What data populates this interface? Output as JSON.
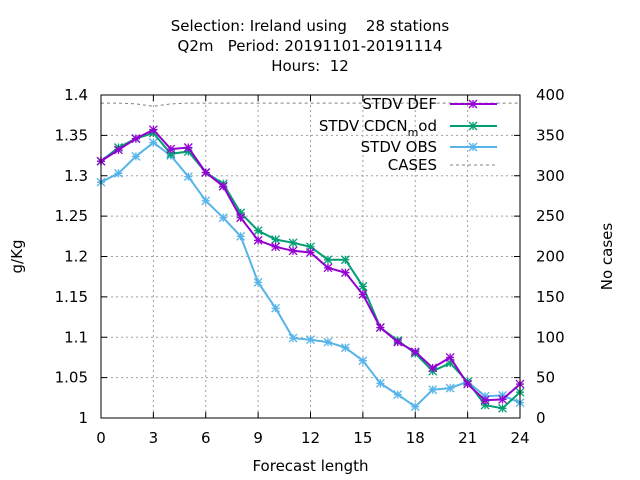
{
  "title_lines": [
    "Selection: Ireland using    28 stations",
    "Q2m   Period: 20191101-20191114",
    "Hours:  12"
  ],
  "chart_data": {
    "type": "line",
    "xlabel": "Forecast length",
    "ylabel": "g/Kg",
    "y2label": "No cases",
    "xlim": [
      0,
      24
    ],
    "ylim": [
      1.0,
      1.4
    ],
    "y2lim": [
      0,
      400
    ],
    "xticks": [
      0,
      3,
      6,
      9,
      12,
      15,
      18,
      21,
      24
    ],
    "yticks": [
      1.0,
      1.05,
      1.1,
      1.15,
      1.2,
      1.25,
      1.3,
      1.35,
      1.4
    ],
    "yticklabels": [
      "1",
      "1.05",
      "1.1",
      "1.15",
      "1.2",
      "1.25",
      "1.3",
      "1.35",
      "1.4"
    ],
    "y2ticks": [
      0,
      50,
      100,
      150,
      200,
      250,
      300,
      350,
      400
    ],
    "grid": true,
    "legend_position": "top-right",
    "x": [
      0,
      1,
      2,
      3,
      4,
      5,
      6,
      7,
      8,
      9,
      10,
      11,
      12,
      13,
      14,
      15,
      16,
      17,
      18,
      19,
      20,
      21,
      22,
      23,
      24
    ],
    "series": [
      {
        "name": "STDV DEF",
        "color": "#9400d3",
        "axis": "y",
        "marker": "star",
        "values": [
          1.318,
          1.332,
          1.346,
          1.357,
          1.333,
          1.335,
          1.304,
          1.287,
          1.248,
          1.22,
          1.212,
          1.207,
          1.205,
          1.186,
          1.18,
          1.153,
          1.112,
          1.094,
          1.082,
          1.062,
          1.075,
          1.042,
          1.022,
          1.023,
          1.042
        ]
      },
      {
        "name": "STDV CDCN",
        "name_subscript": "m",
        "name_suffix": "od",
        "color": "#009e73",
        "axis": "y",
        "marker": "star",
        "values": [
          1.318,
          1.335,
          1.346,
          1.353,
          1.327,
          1.33,
          1.304,
          1.29,
          1.254,
          1.232,
          1.221,
          1.217,
          1.212,
          1.196,
          1.196,
          1.163,
          1.112,
          1.096,
          1.08,
          1.058,
          1.068,
          1.045,
          1.016,
          1.012,
          1.032
        ]
      },
      {
        "name": "STDV OBS",
        "color": "#56b4e9",
        "axis": "y",
        "marker": "star",
        "values": [
          1.292,
          1.303,
          1.324,
          1.341,
          1.325,
          1.299,
          1.269,
          1.248,
          1.225,
          1.168,
          1.136,
          1.099,
          1.097,
          1.094,
          1.087,
          1.071,
          1.043,
          1.029,
          1.014,
          1.035,
          1.037,
          1.045,
          1.027,
          1.028,
          1.019
        ]
      },
      {
        "name": "CASES",
        "color": "#808080",
        "axis": "y2",
        "dashed": true,
        "values": [
          390,
          390,
          389,
          386,
          389,
          390,
          390,
          390,
          390,
          390,
          390,
          390,
          390,
          390,
          390,
          390,
          390,
          390,
          390,
          390,
          390,
          390,
          390,
          390,
          390
        ]
      }
    ]
  }
}
